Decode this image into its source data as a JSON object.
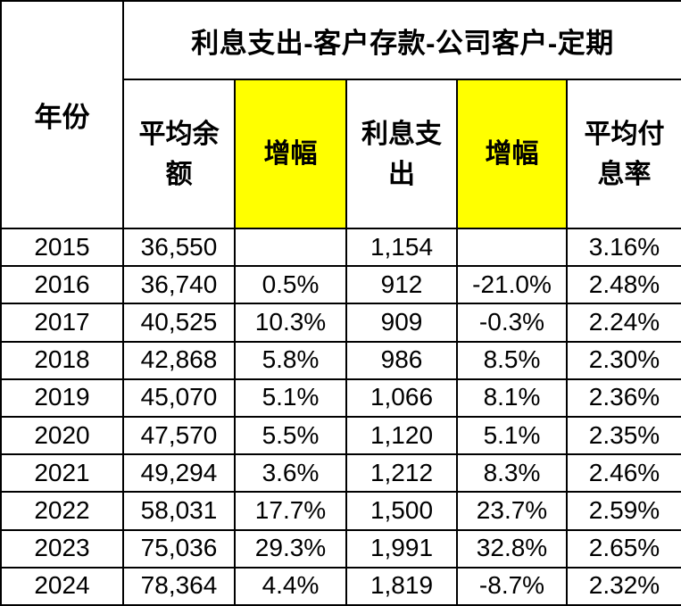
{
  "table": {
    "title": "利息支出-客户存款-公司客户-定期",
    "year_header": "年份",
    "display_columns": [
      "平均余\n额",
      "增幅",
      "利息支\n出",
      "增幅",
      "平均付\n息率"
    ],
    "highlight_color": "#FFFF00"
  },
  "chart_data": {
    "type": "table",
    "title": "利息支出-客户存款-公司客户-定期",
    "columns": [
      "年份",
      "平均余额",
      "增幅",
      "利息支出",
      "增幅",
      "平均付息率"
    ],
    "highlighted_column_indices": [
      2,
      4
    ],
    "highlight_color": "#FFFF00",
    "rows": [
      [
        "2015",
        "36,550",
        "",
        "1,154",
        "",
        "3.16%"
      ],
      [
        "2016",
        "36,740",
        "0.5%",
        "912",
        "-21.0%",
        "2.48%"
      ],
      [
        "2017",
        "40,525",
        "10.3%",
        "909",
        "-0.3%",
        "2.24%"
      ],
      [
        "2018",
        "42,868",
        "5.8%",
        "986",
        "8.5%",
        "2.30%"
      ],
      [
        "2019",
        "45,070",
        "5.1%",
        "1,066",
        "8.1%",
        "2.36%"
      ],
      [
        "2020",
        "47,570",
        "5.5%",
        "1,120",
        "5.1%",
        "2.35%"
      ],
      [
        "2021",
        "49,294",
        "3.6%",
        "1,212",
        "8.3%",
        "2.46%"
      ],
      [
        "2022",
        "58,031",
        "17.7%",
        "1,500",
        "23.7%",
        "2.59%"
      ],
      [
        "2023",
        "75,036",
        "29.3%",
        "1,991",
        "32.8%",
        "2.65%"
      ],
      [
        "2024",
        "78,364",
        "4.4%",
        "1,819",
        "-8.7%",
        "2.32%"
      ]
    ]
  }
}
